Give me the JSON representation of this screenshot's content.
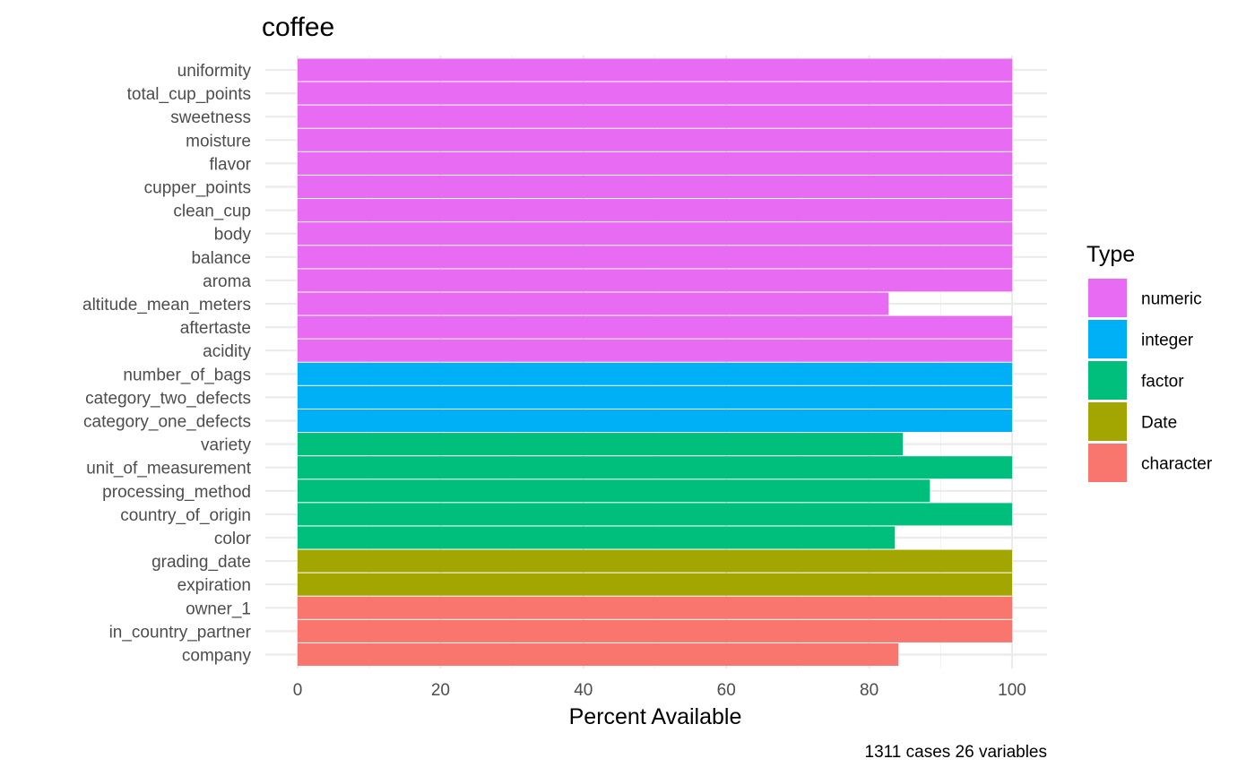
{
  "chart_data": {
    "type": "bar",
    "orientation": "horizontal",
    "title": "coffee",
    "xlabel": "Percent Available",
    "ylabel": "",
    "caption": "1311 cases 26 variables",
    "xlim": [
      0,
      100
    ],
    "xticks": [
      "0",
      "20",
      "40",
      "60",
      "80",
      "100"
    ],
    "legend": {
      "title": "Type",
      "position": "right",
      "entries": [
        {
          "label": "numeric",
          "color": "#E76BF3"
        },
        {
          "label": "integer",
          "color": "#00B0F6"
        },
        {
          "label": "factor",
          "color": "#00BF7D"
        },
        {
          "label": "Date",
          "color": "#A3A500"
        },
        {
          "label": "character",
          "color": "#F8766D"
        }
      ]
    },
    "bars": [
      {
        "variable": "uniformity",
        "value": 100,
        "type": "numeric"
      },
      {
        "variable": "total_cup_points",
        "value": 100,
        "type": "numeric"
      },
      {
        "variable": "sweetness",
        "value": 100,
        "type": "numeric"
      },
      {
        "variable": "moisture",
        "value": 100,
        "type": "numeric"
      },
      {
        "variable": "flavor",
        "value": 100,
        "type": "numeric"
      },
      {
        "variable": "cupper_points",
        "value": 100,
        "type": "numeric"
      },
      {
        "variable": "clean_cup",
        "value": 100,
        "type": "numeric"
      },
      {
        "variable": "body",
        "value": 100,
        "type": "numeric"
      },
      {
        "variable": "balance",
        "value": 100,
        "type": "numeric"
      },
      {
        "variable": "aroma",
        "value": 100,
        "type": "numeric"
      },
      {
        "variable": "altitude_mean_meters",
        "value": 82.7,
        "type": "numeric"
      },
      {
        "variable": "aftertaste",
        "value": 100,
        "type": "numeric"
      },
      {
        "variable": "acidity",
        "value": 100,
        "type": "numeric"
      },
      {
        "variable": "number_of_bags",
        "value": 100,
        "type": "integer"
      },
      {
        "variable": "category_two_defects",
        "value": 100,
        "type": "integer"
      },
      {
        "variable": "category_one_defects",
        "value": 100,
        "type": "integer"
      },
      {
        "variable": "variety",
        "value": 84.7,
        "type": "factor"
      },
      {
        "variable": "unit_of_measurement",
        "value": 100,
        "type": "factor"
      },
      {
        "variable": "processing_method",
        "value": 88.5,
        "type": "factor"
      },
      {
        "variable": "country_of_origin",
        "value": 100,
        "type": "factor"
      },
      {
        "variable": "color",
        "value": 83.6,
        "type": "factor"
      },
      {
        "variable": "grading_date",
        "value": 100,
        "type": "Date"
      },
      {
        "variable": "expiration",
        "value": 100,
        "type": "Date"
      },
      {
        "variable": "owner_1",
        "value": 100,
        "type": "character"
      },
      {
        "variable": "in_country_partner",
        "value": 100,
        "type": "character"
      },
      {
        "variable": "company",
        "value": 84.1,
        "type": "character"
      }
    ]
  }
}
